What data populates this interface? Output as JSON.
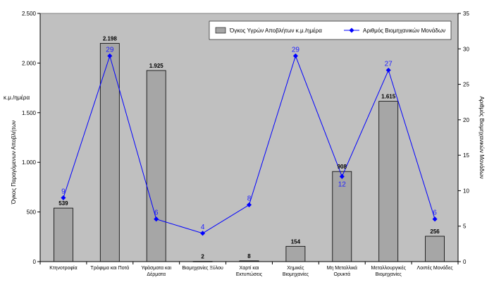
{
  "chart_data": {
    "type": "bar",
    "categories": [
      [
        "Κτηνοτροφία"
      ],
      [
        "Τρόφιμα και Ποτά"
      ],
      [
        "Υφάσματα και",
        "Δέρματα"
      ],
      [
        "Βιομηχανίες Ξύλου"
      ],
      [
        "Χαρτί και",
        "Εκτυπώσεις"
      ],
      [
        "Χημικές",
        "Βιομηχανίες"
      ],
      [
        "Μη Μεταλλικά",
        "Ορυκτά"
      ],
      [
        "Μεταλλουργικές",
        "Βιομηχανίες"
      ],
      [
        "Λοιπές Μονάδες"
      ]
    ],
    "series": [
      {
        "name": "Όγκος Υγρών Αποβλήτων  κ.μ./ημέρα",
        "kind": "bar",
        "axis": "left",
        "values": [
          539,
          2198,
          1925,
          2,
          8,
          154,
          908,
          1615,
          256
        ],
        "labels": [
          "539",
          "2.198",
          "1.925",
          "2",
          "8",
          "154",
          "908",
          "1.615",
          "256"
        ],
        "color": "#a6a6a6"
      },
      {
        "name": "Αριθμός Βιομηχανικών Μονάδων",
        "kind": "line",
        "axis": "right",
        "values": [
          9,
          29,
          6,
          4,
          8,
          29,
          12,
          27,
          6
        ],
        "labels": [
          "9",
          "29",
          "6",
          "4",
          "8",
          "29",
          "12",
          "27",
          "6"
        ],
        "color": "#0000ff"
      }
    ],
    "y_left": {
      "ylim": [
        0,
        2500
      ],
      "ticks": [
        0,
        500,
        1000,
        1500,
        2000,
        2500
      ],
      "tick_labels": [
        "0",
        "500",
        "1.000",
        "1.500",
        "2.000",
        "2.500"
      ],
      "label": "Όγκος Παραγόμενων Αποβλήτων",
      "unit": "κ.μ./ημέρα"
    },
    "y_right": {
      "ylim": [
        0,
        35
      ],
      "ticks": [
        0,
        5,
        10,
        15,
        20,
        25,
        30,
        35
      ],
      "tick_labels": [
        "0",
        "5",
        "10",
        "15",
        "20",
        "25",
        "30",
        "35"
      ],
      "label": "Αριθμός Βιομηχανικών Μονάδων"
    },
    "legend": "top-right",
    "plot_background": "#c0c0c0",
    "grid": false
  }
}
